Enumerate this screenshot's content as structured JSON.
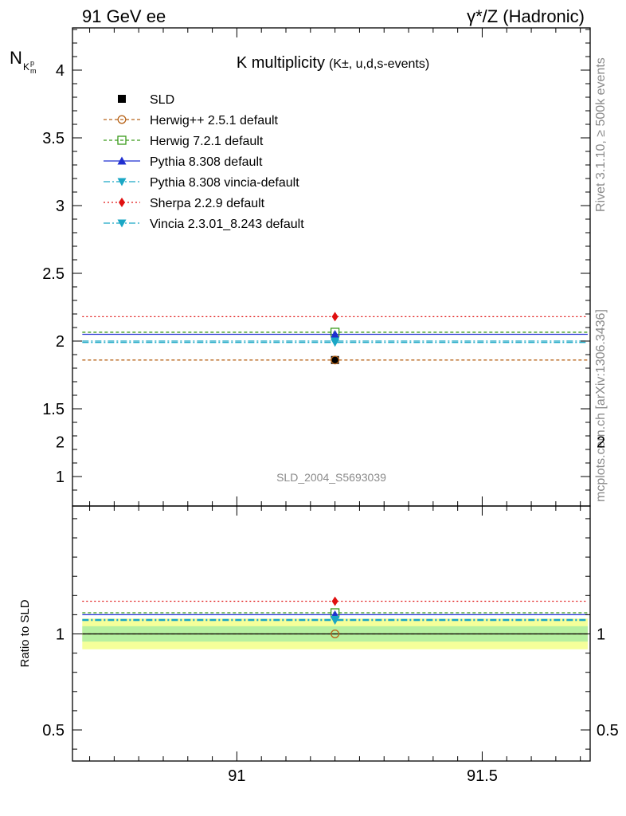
{
  "header": {
    "left": "91 GeV ee",
    "right": "γ*/Z (Hadronic)"
  },
  "side_labels": {
    "rivet": "Rivet 3.1.10, ≥ 500k events",
    "mcplots": "mcplots.cern.ch [arXiv:1306.3436]"
  },
  "chart_data": {
    "type": "scatter",
    "title_main": "K multiplicity",
    "title_sub": "(K±, u,d,s-events)",
    "watermark": "SLD_2004_S5693039",
    "ylabel_main": "N",
    "ylabel_main_sub": "K",
    "ylabel_main_sup": "p",
    "ylabel_main_sub2": "m",
    "ylabel_ratio": "Ratio to SLD",
    "xlim": [
      90.665,
      91.72
    ],
    "ylim_main": [
      0.82,
      4.32
    ],
    "ylim_ratio": [
      0.33,
      2.35
    ],
    "x_ticks": [
      "91",
      "91.5"
    ],
    "y_ticks_main": [
      "1",
      "1.5",
      "2",
      "2.5",
      "3",
      "3.5",
      "4"
    ],
    "y_ticks_ratio": [
      "0.5",
      "1",
      "2"
    ],
    "bin": [
      90.685,
      91.715
    ],
    "x_point": 91.2,
    "data": {
      "name": "SLD",
      "value": 1.86,
      "ratio_band": [
        0.96,
        1.04
      ]
    },
    "series": [
      {
        "name": "Herwig++ 2.5.1 default",
        "value": 1.86,
        "ratio": 1.0,
        "color": "#b8651b",
        "marker": "circle-open",
        "dash": "4,3"
      },
      {
        "name": "Herwig 7.2.1 default",
        "value": 2.065,
        "ratio": 1.11,
        "color": "#3a9a1a",
        "marker": "square-open",
        "dash": "4,3"
      },
      {
        "name": "Pythia 8.308 default",
        "value": 2.05,
        "ratio": 1.1,
        "color": "#1f2fd0",
        "marker": "triangle-up",
        "dash": ""
      },
      {
        "name": "Pythia 8.308 vincia-default",
        "value": 1.99,
        "ratio": 1.07,
        "color": "#1aa7c5",
        "marker": "triangle-down",
        "dash": "8,3,2,3"
      },
      {
        "name": "Sherpa 2.2.9 default",
        "value": 2.18,
        "ratio": 1.17,
        "color": "#e01010",
        "marker": "diamond",
        "dash": "2,3"
      },
      {
        "name": "Vincia 2.3.01_8.243 default",
        "value": 2.0,
        "ratio": 1.075,
        "color": "#1aa7c5",
        "marker": "triangle-down",
        "dash": "8,3,2,3"
      }
    ],
    "grid": false,
    "legend": "top-left"
  }
}
